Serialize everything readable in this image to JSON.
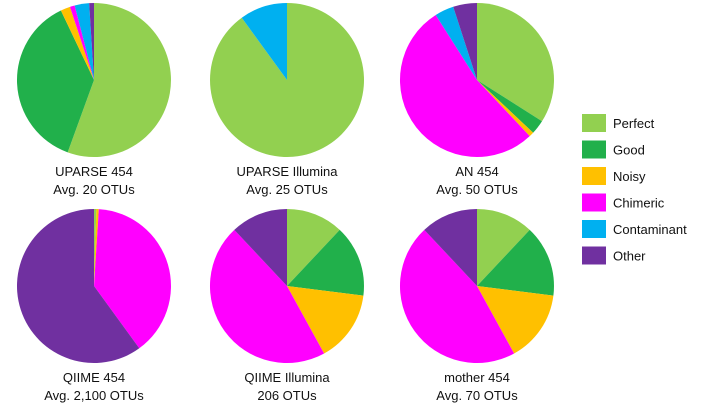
{
  "chart_data": {
    "type": "pie",
    "categories": [
      "Perfect",
      "Good",
      "Noisy",
      "Chimeric",
      "Contaminant",
      "Other"
    ],
    "colors": {
      "Perfect": "#92d050",
      "Good": "#21b04b",
      "Noisy": "#ffc000",
      "Chimeric": "#ff00ff",
      "Contaminant": "#00b0f0",
      "Other": "#7030a0"
    },
    "legend_position": "right",
    "charts": [
      {
        "title": "UPARSE 454",
        "subtitle": "Avg. 20 OTUs",
        "values": {
          "Perfect": 55,
          "Good": 37,
          "Noisy": 2,
          "Chimeric": 1,
          "Contaminant": 3,
          "Other": 1
        }
      },
      {
        "title": "UPARSE Illumina",
        "subtitle": "Avg. 25 OTUs",
        "values": {
          "Perfect": 90,
          "Good": 0,
          "Noisy": 0,
          "Chimeric": 0,
          "Contaminant": 10,
          "Other": 0
        }
      },
      {
        "title": "AN 454",
        "subtitle": "Avg. 50 OTUs",
        "values": {
          "Perfect": 34,
          "Good": 3,
          "Noisy": 1,
          "Chimeric": 53,
          "Contaminant": 4,
          "Other": 5
        }
      },
      {
        "title": "QIIME 454",
        "subtitle": "Avg. 2,100 OTUs",
        "values": {
          "Perfect": 0.5,
          "Good": 0,
          "Noisy": 0.5,
          "Chimeric": 39,
          "Contaminant": 0,
          "Other": 60
        }
      },
      {
        "title": "QIIME Illumina",
        "subtitle": "206 OTUs",
        "values": {
          "Perfect": 12,
          "Good": 15,
          "Noisy": 15,
          "Chimeric": 46,
          "Contaminant": 0,
          "Other": 12
        }
      },
      {
        "title": "mother 454",
        "subtitle": "Avg. 70 OTUs",
        "values": {
          "Perfect": 12,
          "Good": 15,
          "Noisy": 15,
          "Chimeric": 46,
          "Contaminant": 0,
          "Other": 12
        }
      }
    ]
  }
}
